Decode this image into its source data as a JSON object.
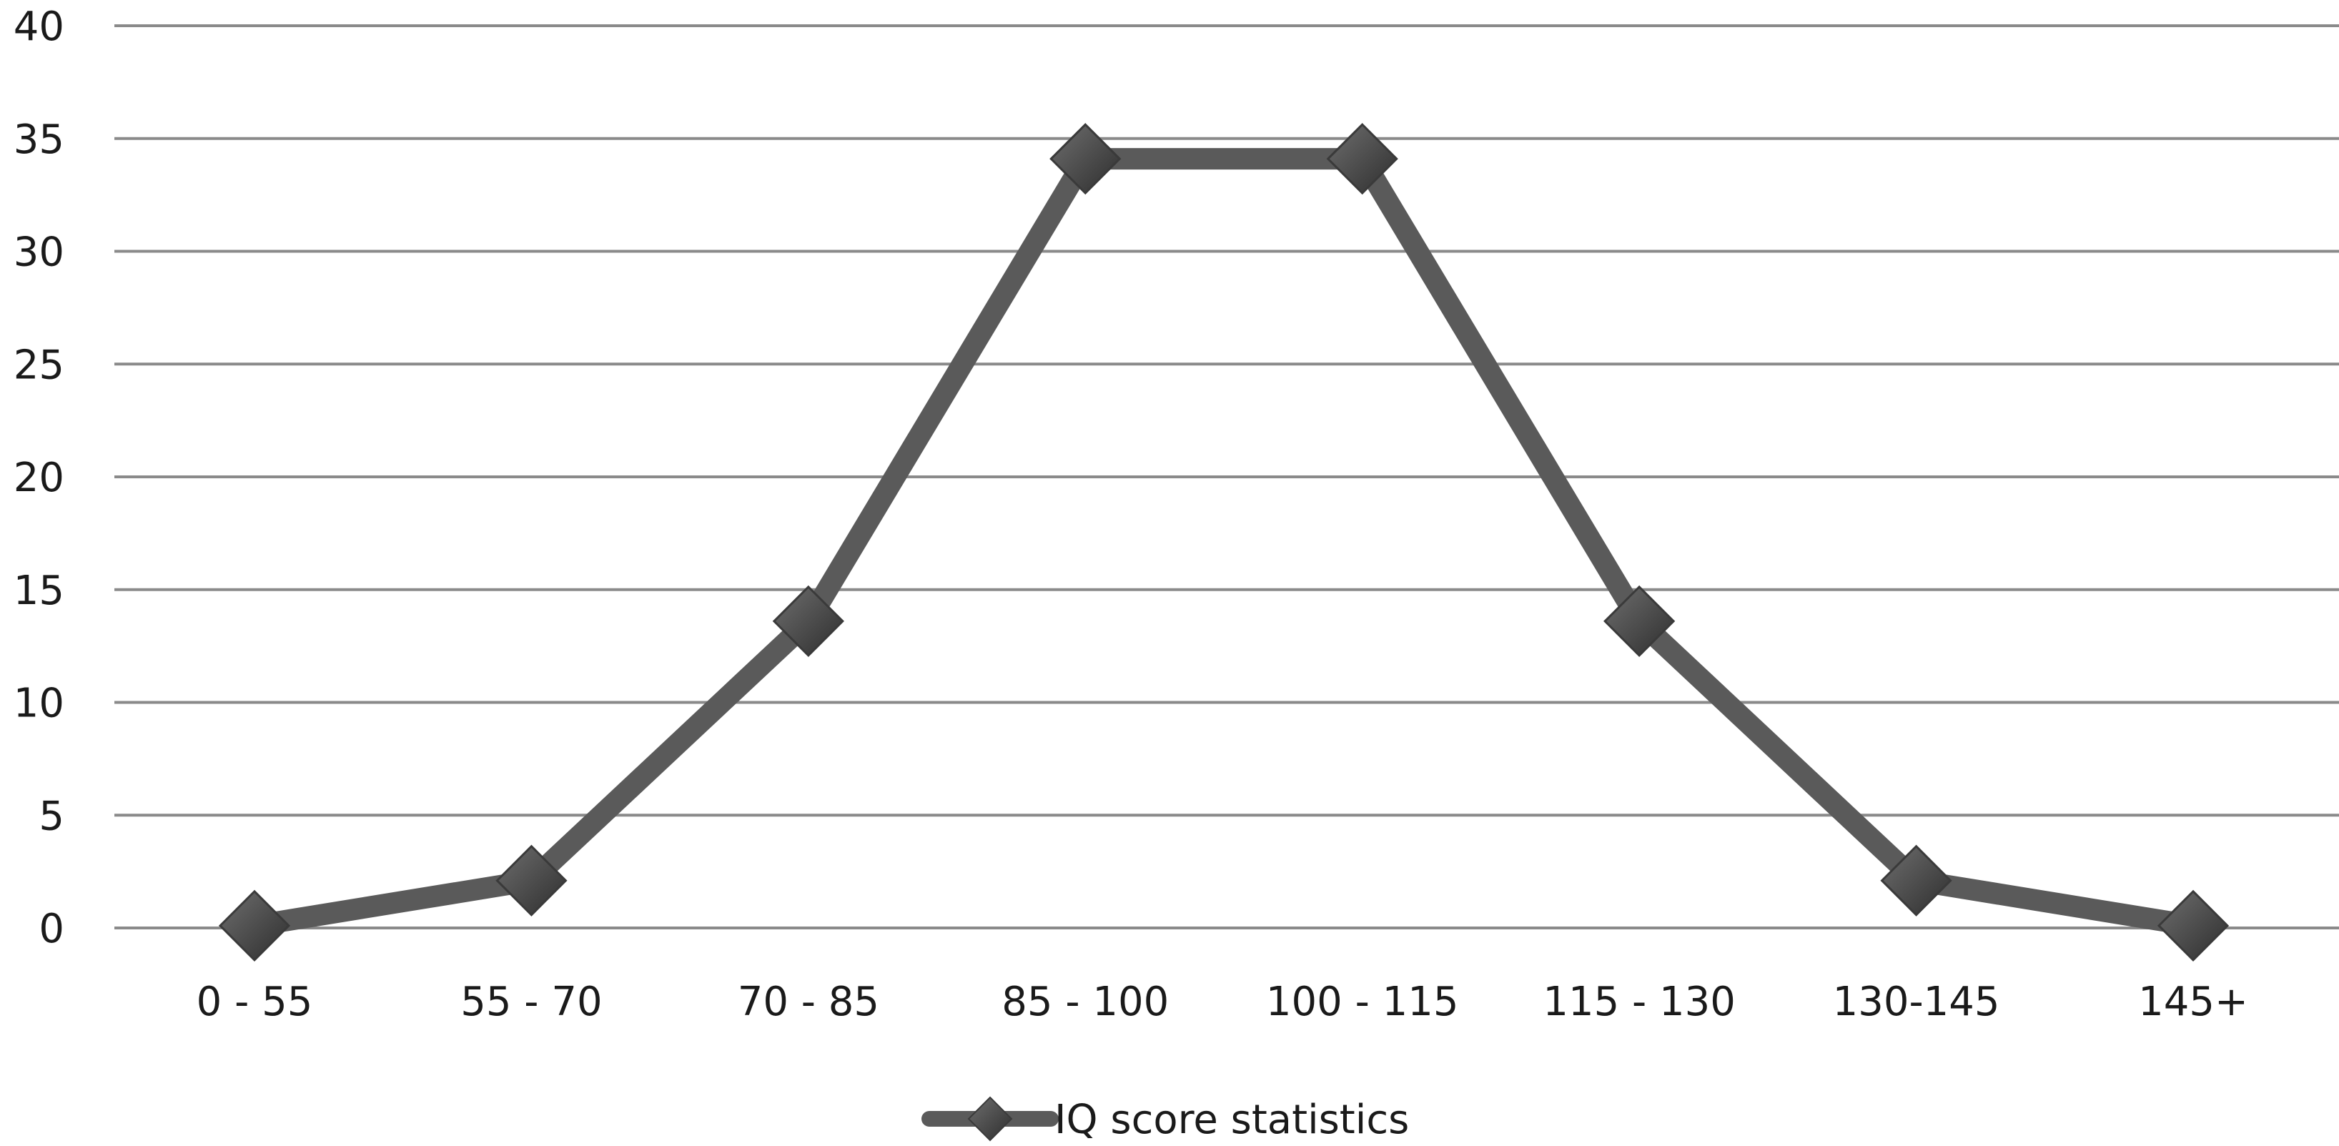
{
  "chart_data": {
    "type": "line",
    "categories": [
      "0 - 55",
      "55 - 70",
      "70 - 85",
      "85 - 100",
      "100 - 115",
      "115 - 130",
      "130-145",
      "145+"
    ],
    "series": [
      {
        "name": "IQ score statistics",
        "values": [
          0.1,
          2.1,
          13.6,
          34.1,
          34.1,
          13.6,
          2.1,
          0.1
        ]
      }
    ],
    "ylim": [
      0,
      40
    ],
    "yticks": [
      0,
      5,
      10,
      15,
      20,
      25,
      30,
      35,
      40
    ],
    "grid": true,
    "legend_position": "bottom",
    "colors": {
      "line": "#5a5a5a",
      "marker": "#4a4a4a",
      "grid": "#8a8a8a",
      "text": "#1a1a1a"
    }
  }
}
